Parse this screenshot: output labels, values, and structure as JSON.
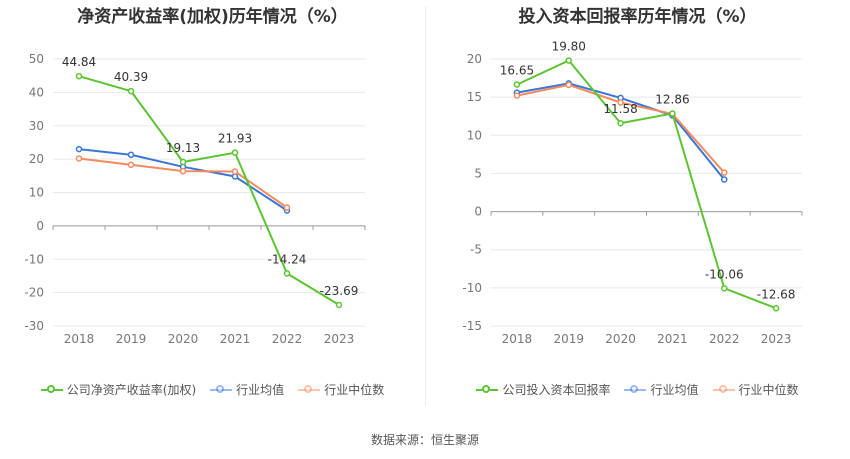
{
  "source_text": "数据来源：恒生聚源",
  "colors": {
    "company": "#5cc432",
    "avg": "#3a76d8",
    "median": "#f28b5f",
    "grid": "#e8e8e8",
    "axis": "#999999"
  },
  "chart_data": [
    {
      "type": "line",
      "title": "净资产收益率(加权)历年情况（%）",
      "categories": [
        "2018",
        "2019",
        "2020",
        "2021",
        "2022",
        "2023"
      ],
      "ylim": [
        -30,
        50
      ],
      "yticks": [
        50,
        40,
        30,
        20,
        10,
        0,
        -10,
        -20,
        -30
      ],
      "grid": true,
      "legend_position": "bottom",
      "series": [
        {
          "name": "公司净资产收益率(加权)",
          "key": "company",
          "values": [
            44.84,
            40.39,
            19.13,
            21.93,
            -14.24,
            -23.69
          ],
          "labels": [
            "44.84",
            "40.39",
            "19.13",
            "21.93",
            "-14.24",
            "-23.69"
          ]
        },
        {
          "name": "行业均值",
          "key": "avg",
          "values": [
            23.0,
            21.3,
            17.7,
            14.8,
            4.6,
            null
          ]
        },
        {
          "name": "行业中位数",
          "key": "median",
          "values": [
            20.2,
            18.3,
            16.4,
            16.3,
            5.5,
            null
          ]
        }
      ]
    },
    {
      "type": "line",
      "title": "投入资本回报率历年情况（%）",
      "categories": [
        "2018",
        "2019",
        "2020",
        "2021",
        "2022",
        "2023"
      ],
      "ylim": [
        -15,
        20
      ],
      "yticks": [
        20,
        15,
        10,
        5,
        0,
        -5,
        -10,
        -15
      ],
      "grid": true,
      "legend_position": "bottom",
      "series": [
        {
          "name": "公司投入资本回报率",
          "key": "company",
          "values": [
            16.65,
            19.8,
            11.58,
            12.86,
            -10.06,
            -12.68
          ],
          "labels": [
            "16.65",
            "19.80",
            "11.58",
            "12.86",
            "-10.06",
            "-12.68"
          ]
        },
        {
          "name": "行业均值",
          "key": "avg",
          "values": [
            15.6,
            16.8,
            14.9,
            12.6,
            4.2,
            null
          ]
        },
        {
          "name": "行业中位数",
          "key": "median",
          "values": [
            15.2,
            16.6,
            14.3,
            12.8,
            5.1,
            null
          ]
        }
      ]
    }
  ]
}
